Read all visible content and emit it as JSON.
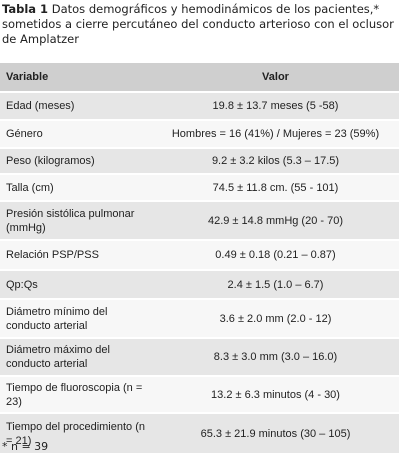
{
  "caption": {
    "label": "Tabla 1",
    "text": "Datos demográficos y hemodinámicos de los pacientes,* sometidos a cierre percutáneo del conducto arterioso con el oclusor de Amplatzer"
  },
  "table": {
    "header": [
      "Variable",
      "Valor"
    ],
    "rows": [
      [
        "Edad (meses)",
        "19.8 ± 13.7 meses (5 -58)"
      ],
      [
        "Género",
        "Hombres = 16 (41%)  /  Mujeres = 23 (59%)"
      ],
      [
        "Peso (kilogramos)",
        "9.2 ± 3.2 kilos (5.3 – 17.5)"
      ],
      [
        "Talla (cm)",
        "74.5 ± 11.8 cm. (55 - 101)"
      ],
      [
        "Presión sistólica pulmonar (mmHg)",
        "42.9 ± 14.8 mmHg (20 - 70)"
      ],
      [
        "Relación PSP/PSS",
        "0.49 ± 0.18 (0.21 –  0.87)"
      ],
      [
        "Qp:Qs",
        "2.4 ± 1.5 (1.0 – 6.7)"
      ],
      [
        "Diámetro mínimo del conducto arterial",
        "3.6 ± 2.0 mm (2.0 - 12)"
      ],
      [
        "Diámetro máximo del conducto arterial",
        "8.3 ± 3.0 mm (3.0 – 16.0)"
      ],
      [
        "Tiempo de fluoroscopia (n = 23)",
        "13.2 ± 6.3 minutos (4 - 30)"
      ],
      [
        "Tiempo del procedimiento (n = 21)",
        "65.3 ± 21.9 minutos (30 – 105)"
      ]
    ]
  },
  "footnote": "* n = 39"
}
